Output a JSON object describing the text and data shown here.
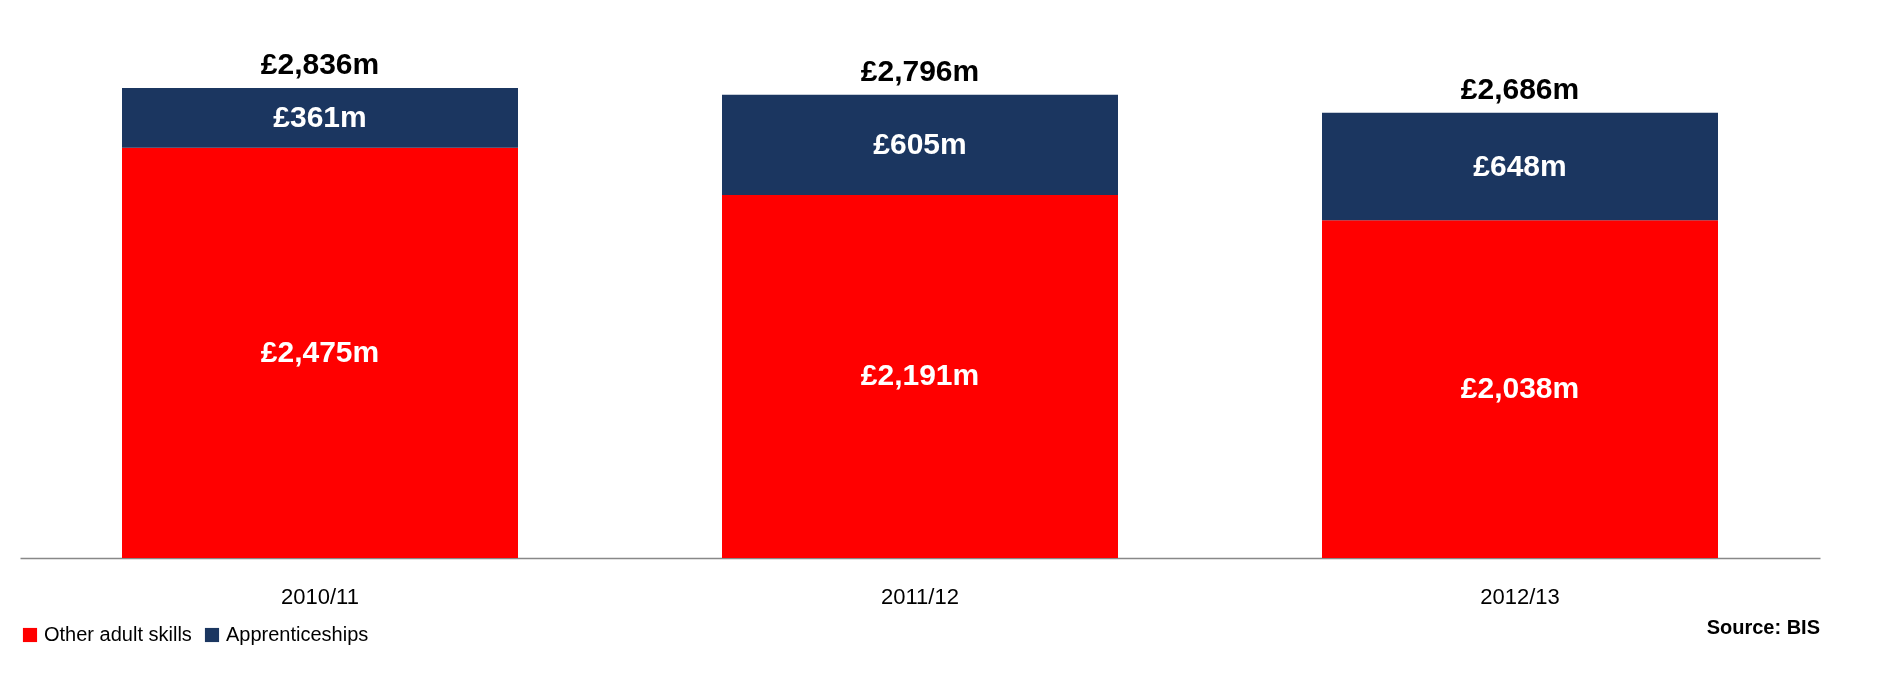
{
  "chart_data": {
    "type": "bar",
    "stacked": true,
    "categories": [
      "2010/11",
      "2011/12",
      "2012/13"
    ],
    "series": [
      {
        "name": "Other adult skills",
        "color": "#ff0000",
        "values": [
          2475,
          2191,
          2038
        ],
        "value_labels": [
          "£2,475m",
          "£2,191m",
          "£2,038m"
        ]
      },
      {
        "name": "Apprenticeships",
        "color": "#1b3660",
        "values": [
          361,
          605,
          648
        ],
        "value_labels": [
          "£361m",
          "£605m",
          "£648m"
        ]
      }
    ],
    "totals": [
      "£2,836m",
      "£2,796m",
      "£2,686m"
    ],
    "legend": "bottom",
    "grid": false,
    "annotations": [
      "Source: BIS"
    ]
  }
}
